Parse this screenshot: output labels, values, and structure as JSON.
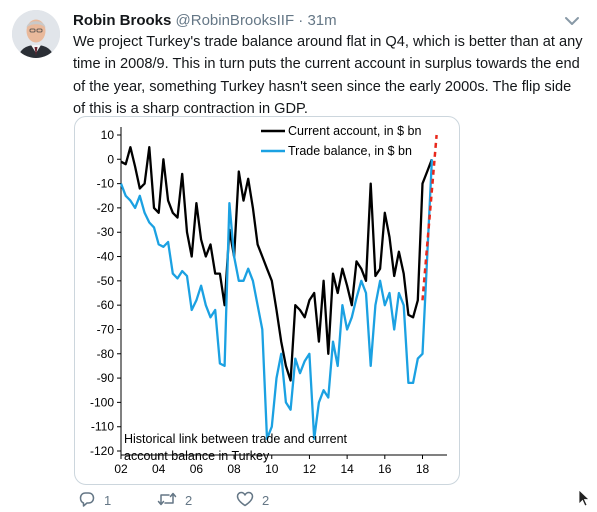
{
  "tweet": {
    "author_name": "Robin Brooks",
    "handle": "@RobinBrooksIIF",
    "separator": "·",
    "time": "31m",
    "text": "We project Turkey's trade balance around flat in Q4, which is better than at any time in 2008/9. This in turn puts the current account in surplus towards the end of the year, something Turkey hasn't seen since the early 2000s. The flip side of this is a sharp contraction in GDP."
  },
  "actions": {
    "reply_count": "1",
    "retweet_count": "2",
    "like_count": "2"
  },
  "icons": {
    "reply": "reply-icon",
    "retweet": "retweet-icon",
    "like": "heart-icon",
    "more": "chevron-down-icon"
  },
  "colors": {
    "current_account": "#000000",
    "trade_balance": "#1ba1e2",
    "projection": "#e8281c",
    "muted": "#657786"
  },
  "chart_data": {
    "type": "line",
    "title": "",
    "xlabel": "",
    "ylabel": "",
    "xlim": [
      2002,
      2019.3
    ],
    "ylim": [
      -120,
      10
    ],
    "x_ticks": [
      "02",
      "04",
      "06",
      "08",
      "10",
      "12",
      "14",
      "16",
      "18"
    ],
    "x_tick_values": [
      2002,
      2004,
      2006,
      2008,
      2010,
      2012,
      2014,
      2016,
      2018
    ],
    "y_ticks": [
      10,
      0,
      -10,
      -20,
      -30,
      -40,
      -50,
      -60,
      -70,
      -80,
      -90,
      -100,
      -110,
      -120
    ],
    "legend_position": "top-right",
    "annotation": "Historical link between trade and current account balance in Turkey",
    "series": [
      {
        "name": "Current account, in $ bn",
        "color": "#000000",
        "x": [
          2002.0,
          2002.25,
          2002.5,
          2002.75,
          2003.0,
          2003.25,
          2003.5,
          2003.75,
          2004.0,
          2004.25,
          2004.5,
          2004.75,
          2005.0,
          2005.25,
          2005.5,
          2005.75,
          2006.0,
          2006.25,
          2006.5,
          2006.75,
          2007.0,
          2007.25,
          2007.5,
          2007.75,
          2008.0,
          2008.25,
          2008.5,
          2008.75,
          2009.0,
          2009.25,
          2009.5,
          2009.75,
          2010.0,
          2010.25,
          2010.5,
          2010.75,
          2011.0,
          2011.25,
          2011.5,
          2011.75,
          2012.0,
          2012.25,
          2012.5,
          2012.75,
          2013.0,
          2013.25,
          2013.5,
          2013.75,
          2014.0,
          2014.25,
          2014.5,
          2014.75,
          2015.0,
          2015.25,
          2015.5,
          2015.75,
          2016.0,
          2016.25,
          2016.5,
          2016.75,
          2017.0,
          2017.25,
          2017.5,
          2017.75,
          2018.0,
          2018.25,
          2018.5
        ],
        "values": [
          -1,
          -2,
          5,
          -3,
          -12,
          -10,
          5,
          -20,
          -22,
          0,
          -17,
          -22,
          -24,
          -6,
          -30,
          -40,
          -18,
          -33,
          -40,
          -35,
          -47,
          -47,
          -60,
          -29,
          -40,
          -5,
          -17,
          -8,
          -20,
          -35,
          -40,
          -45,
          -50,
          -62,
          -75,
          -85,
          -91,
          -60,
          -62,
          -65,
          -58,
          -55,
          -75,
          -50,
          -80,
          -47,
          -55,
          -45,
          -52,
          -60,
          -42,
          -45,
          -50,
          -10,
          -48,
          -45,
          -22,
          -32,
          -48,
          -38,
          -47,
          -64,
          -65,
          -58,
          -10,
          -5,
          0
        ]
      },
      {
        "name": "Trade balance, in $ bn",
        "color": "#1ba1e2",
        "x": [
          2002.0,
          2002.25,
          2002.5,
          2002.75,
          2003.0,
          2003.25,
          2003.5,
          2003.75,
          2004.0,
          2004.25,
          2004.5,
          2004.75,
          2005.0,
          2005.25,
          2005.5,
          2005.75,
          2006.0,
          2006.25,
          2006.5,
          2006.75,
          2007.0,
          2007.25,
          2007.5,
          2007.75,
          2008.0,
          2008.25,
          2008.5,
          2008.75,
          2009.0,
          2009.25,
          2009.5,
          2009.75,
          2010.0,
          2010.25,
          2010.5,
          2010.75,
          2011.0,
          2011.25,
          2011.5,
          2011.75,
          2012.0,
          2012.25,
          2012.5,
          2012.75,
          2013.0,
          2013.25,
          2013.5,
          2013.75,
          2014.0,
          2014.25,
          2014.5,
          2014.75,
          2015.0,
          2015.25,
          2015.5,
          2015.75,
          2016.0,
          2016.25,
          2016.5,
          2016.75,
          2017.0,
          2017.25,
          2017.5,
          2017.75,
          2018.0,
          2018.25,
          2018.5
        ],
        "values": [
          -10,
          -15,
          -17,
          -20,
          -15,
          -22,
          -26,
          -28,
          -35,
          -36,
          -34,
          -47,
          -49,
          -46,
          -48,
          -62,
          -58,
          -52,
          -60,
          -65,
          -62,
          -84,
          -85,
          -18,
          -40,
          -50,
          -50,
          -45,
          -50,
          -60,
          -70,
          -115,
          -110,
          -90,
          -80,
          -100,
          -103,
          -82,
          -88,
          -83,
          -80,
          -115,
          -100,
          -95,
          -98,
          -75,
          -85,
          -60,
          -70,
          -65,
          -57,
          -50,
          -55,
          -85,
          -60,
          -50,
          -60,
          -55,
          -70,
          -55,
          -60,
          -92,
          -92,
          -82,
          -80,
          -40,
          0
        ]
      },
      {
        "name": "",
        "color": "#e8281c",
        "style": "dashed",
        "x": [
          2018.0,
          2018.75
        ],
        "values": [
          -58,
          10
        ]
      }
    ]
  }
}
